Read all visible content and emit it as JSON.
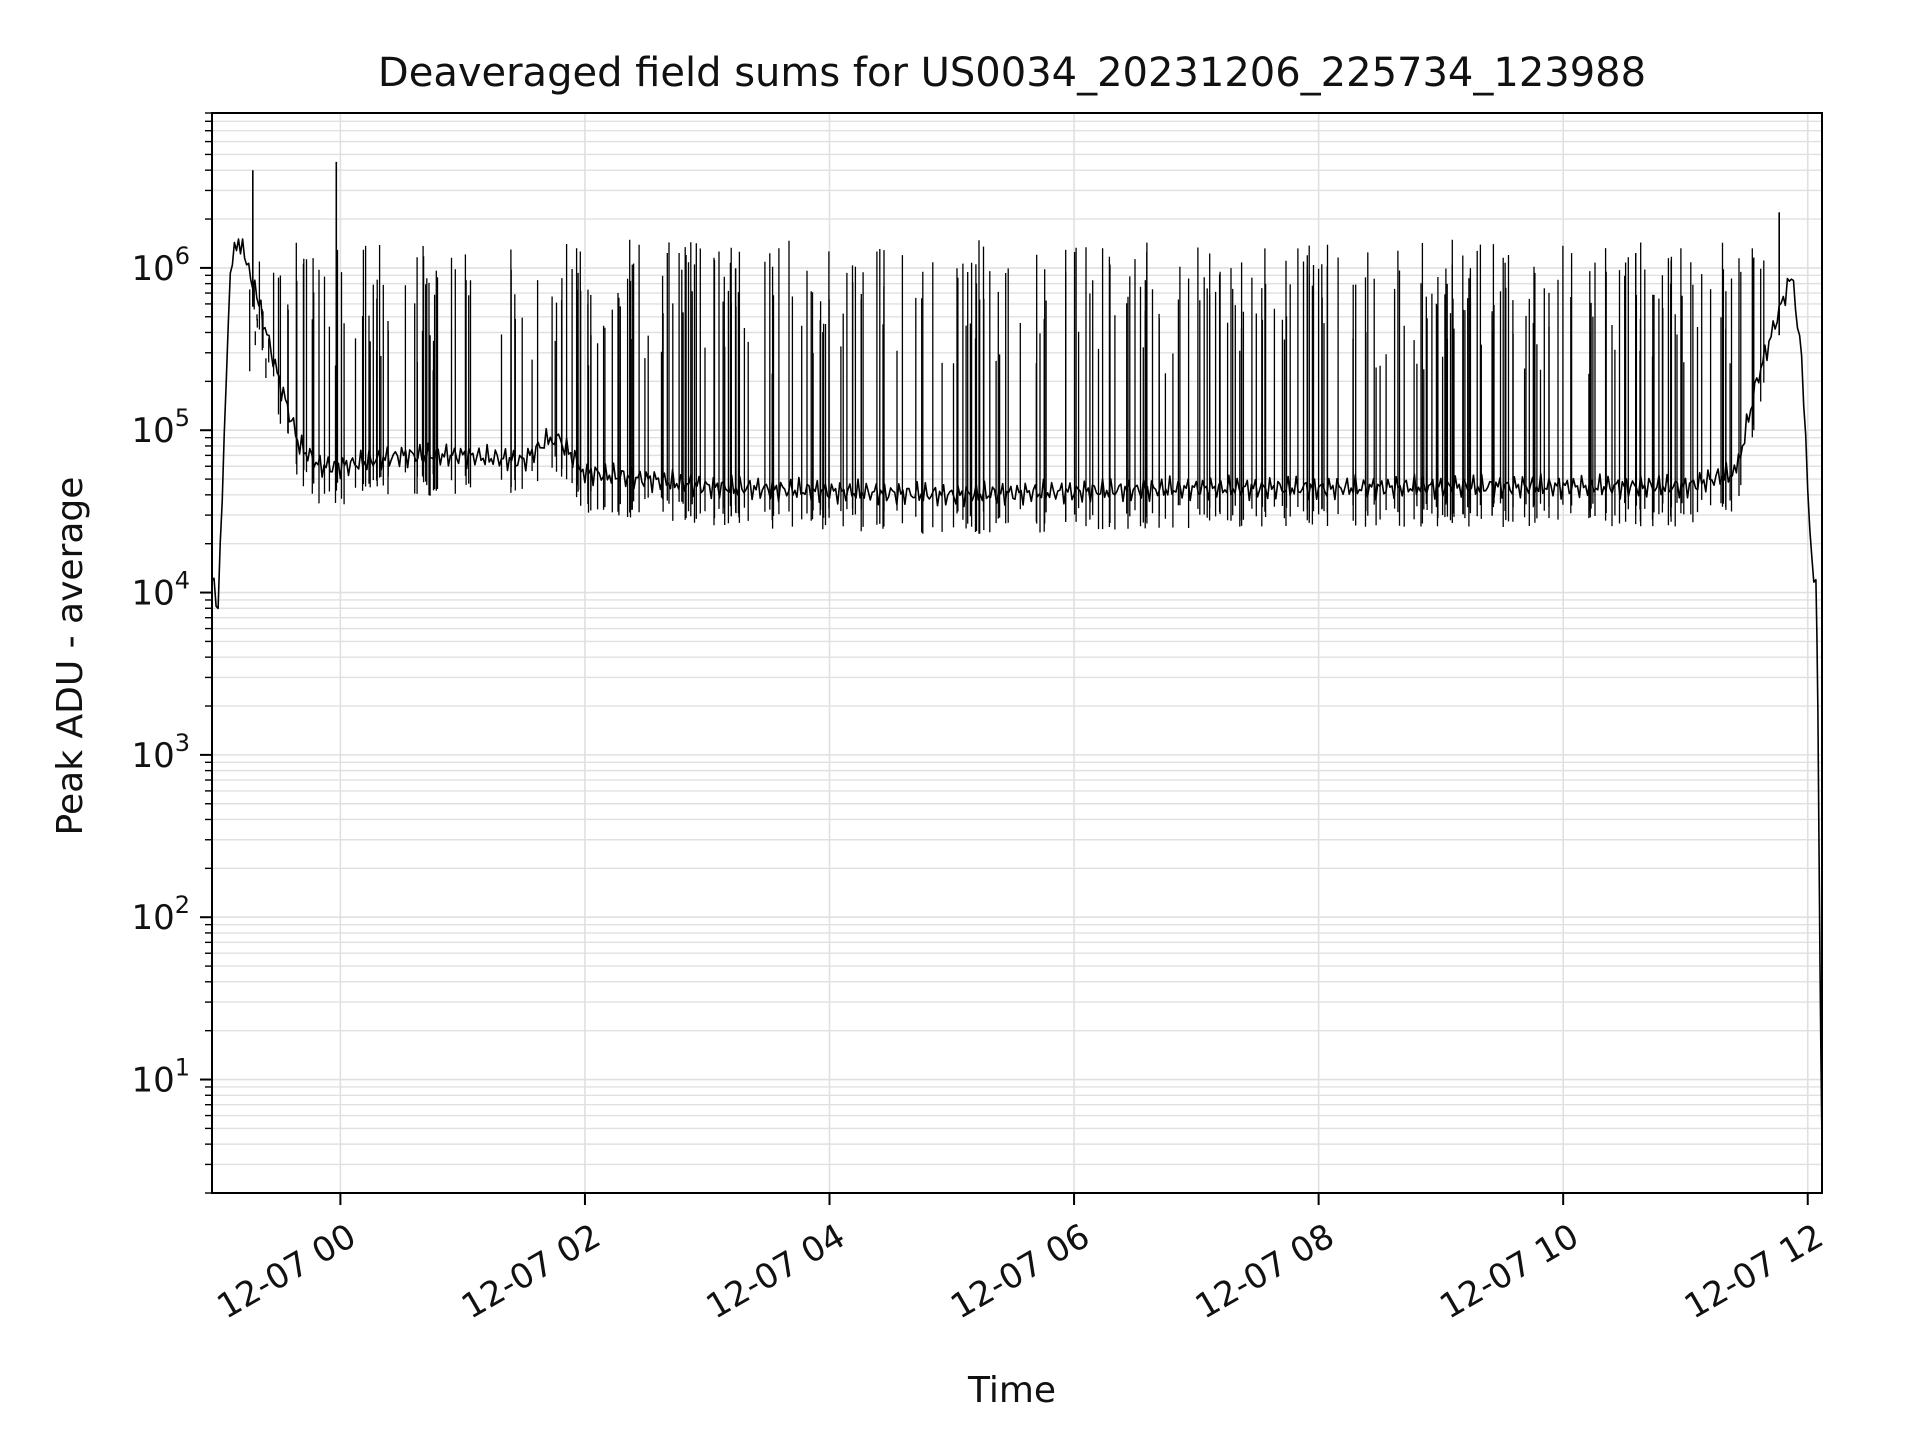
{
  "chart_data": {
    "type": "line",
    "title": "Deaveraged field sums for US0034_20231206_225734_123988",
    "xlabel": "Time",
    "ylabel": "Peak ADU - average",
    "yscale": "log",
    "ylim": [
      2,
      9000000
    ],
    "xlim": [
      "2023-12-06 22:57",
      "2023-12-07 12:07"
    ],
    "grid": true,
    "line_color": "#000000",
    "grid_color": "#e0e0e0",
    "x_ticks": [
      {
        "value": "2023-12-07 00:00",
        "label": "12-07 00"
      },
      {
        "value": "2023-12-07 02:00",
        "label": "12-07 02"
      },
      {
        "value": "2023-12-07 04:00",
        "label": "12-07 04"
      },
      {
        "value": "2023-12-07 06:00",
        "label": "12-07 06"
      },
      {
        "value": "2023-12-07 08:00",
        "label": "12-07 08"
      },
      {
        "value": "2023-12-07 10:00",
        "label": "12-07 10"
      },
      {
        "value": "2023-12-07 12:00",
        "label": "12-07 12"
      }
    ],
    "y_ticks": [
      {
        "value": 10,
        "base": "10",
        "exp": "1"
      },
      {
        "value": 100,
        "base": "10",
        "exp": "2"
      },
      {
        "value": 1000,
        "base": "10",
        "exp": "3"
      },
      {
        "value": 10000,
        "base": "10",
        "exp": "4"
      },
      {
        "value": 100000,
        "base": "10",
        "exp": "5"
      },
      {
        "value": 1000000,
        "base": "10",
        "exp": "6"
      }
    ],
    "series": [
      {
        "x": [
          "2023-12-06 22:57",
          "2023-12-06 23:00",
          "2023-12-06 23:03",
          "2023-12-06 23:06",
          "2023-12-06 23:10",
          "2023-12-06 23:15",
          "2023-12-06 23:20",
          "2023-12-06 23:30",
          "2023-12-06 23:40",
          "2023-12-06 23:50",
          "2023-12-07 00:00",
          "2023-12-07 00:30",
          "2023-12-07 01:00",
          "2023-12-07 01:30",
          "2023-12-07 01:45",
          "2023-12-07 02:00",
          "2023-12-07 02:30",
          "2023-12-07 03:00",
          "2023-12-07 04:00",
          "2023-12-07 05:00",
          "2023-12-07 06:00",
          "2023-12-07 07:00",
          "2023-12-07 08:00",
          "2023-12-07 09:00",
          "2023-12-07 10:00",
          "2023-12-07 11:00",
          "2023-12-07 11:25",
          "2023-12-07 11:35",
          "2023-12-07 11:45",
          "2023-12-07 11:52",
          "2023-12-07 11:57",
          "2023-12-07 12:00",
          "2023-12-07 12:02",
          "2023-12-07 12:04",
          "2023-12-07 12:05",
          "2023-12-07 12:06",
          "2023-12-07 12:07"
        ],
        "y": [
          12000,
          8000,
          100000,
          1000000,
          1500000,
          1000000,
          600000,
          200000,
          80000,
          60000,
          60000,
          70000,
          70000,
          65000,
          95000,
          55000,
          50000,
          45000,
          42000,
          40000,
          42000,
          44000,
          44000,
          45000,
          45000,
          45000,
          55000,
          200000,
          500000,
          900000,
          300000,
          40000,
          15000,
          12000,
          2000,
          50,
          4
        ]
      }
    ],
    "spikes": {
      "x_range": [
        "2023-12-06 23:15",
        "2023-12-07 11:40"
      ],
      "peak_range": [
        200000,
        1500000
      ],
      "notable": [
        {
          "x": "2023-12-06 23:17",
          "y": 4000000
        },
        {
          "x": "2023-12-06 23:58",
          "y": 4500000
        },
        {
          "x": "2023-12-07 11:46",
          "y": 2200000
        }
      ]
    }
  }
}
